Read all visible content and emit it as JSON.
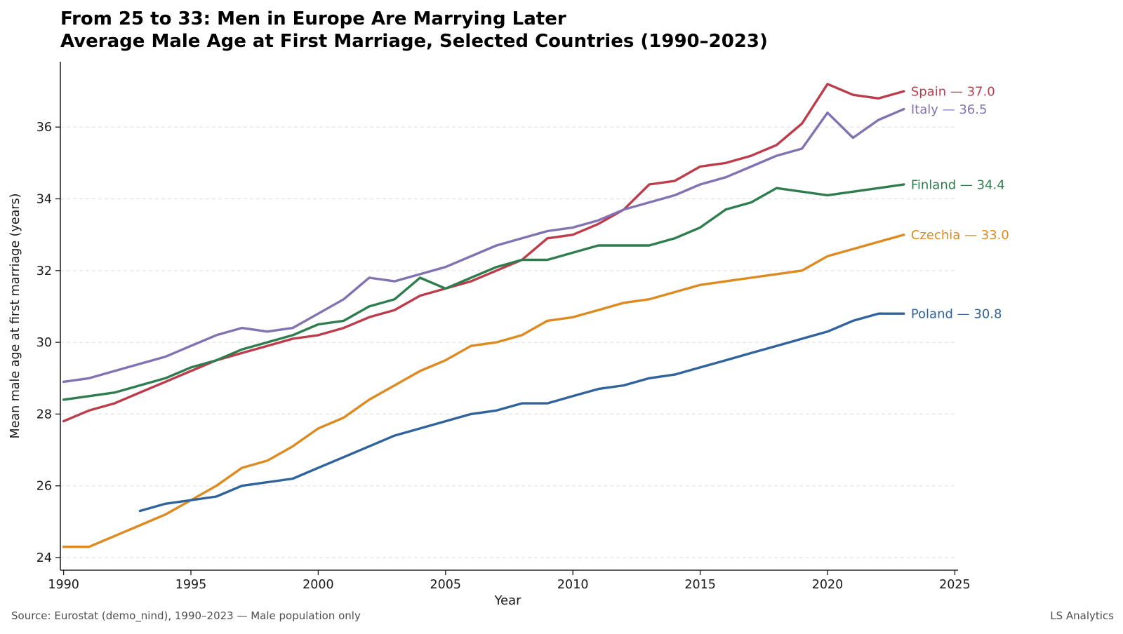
{
  "title": "From 25 to 33: Men in Europe Are Marrying Later",
  "subtitle": "Average Male Age at First Marriage, Selected Countries (1990–2023)",
  "footer": {
    "source": "Source: Eurostat (demo_nind), 1990–2023 — Male population only",
    "brand": "LS Analytics"
  },
  "chart_data": {
    "type": "line",
    "title": "From 25 to 33: Men in Europe Are Marrying Later",
    "subtitle": "Average Male Age at First Marriage, Selected Countries (1990–2023)",
    "xlabel": "Year",
    "ylabel": "Mean male age at first marriage (years)",
    "xlim": [
      1989.9,
      2025.1
    ],
    "ylim": [
      23.6,
      37.8
    ],
    "x_ticks": [
      1990,
      1995,
      2000,
      2005,
      2010,
      2015,
      2020,
      2025
    ],
    "y_ticks": [
      24,
      26,
      28,
      30,
      32,
      34,
      36
    ],
    "grid": "horizontal-dashed",
    "legend_position": "end-of-line-labels",
    "years_start": 1990,
    "years_end": 2023,
    "series": [
      {
        "name": "Spain",
        "label": "Spain — 37.0",
        "color": "#bc3c4b",
        "start_year": 1990,
        "values": [
          27.8,
          28.1,
          28.3,
          28.6,
          28.9,
          29.2,
          29.5,
          29.7,
          29.9,
          30.1,
          30.2,
          30.4,
          30.7,
          30.9,
          31.3,
          31.5,
          31.7,
          32.0,
          32.3,
          32.9,
          33.0,
          33.3,
          33.7,
          34.4,
          34.5,
          34.9,
          35.0,
          35.2,
          35.5,
          36.1,
          37.2,
          36.9,
          36.8,
          37.0
        ]
      },
      {
        "name": "Italy",
        "label": "Italy — 36.5",
        "color": "#8172b2",
        "start_year": 1990,
        "values": [
          28.9,
          29.0,
          29.2,
          29.4,
          29.6,
          29.9,
          30.2,
          30.4,
          30.3,
          30.4,
          30.8,
          31.2,
          31.8,
          31.7,
          31.9,
          32.1,
          32.4,
          32.7,
          32.9,
          33.1,
          33.2,
          33.4,
          33.7,
          33.9,
          34.1,
          34.4,
          34.6,
          34.9,
          35.2,
          35.4,
          36.4,
          35.7,
          36.2,
          36.5
        ]
      },
      {
        "name": "Finland",
        "label": "Finland — 34.4",
        "color": "#2f7d4f",
        "start_year": 1990,
        "values": [
          28.4,
          28.5,
          28.6,
          28.8,
          29.0,
          29.3,
          29.5,
          29.8,
          30.0,
          30.2,
          30.5,
          30.6,
          31.0,
          31.2,
          31.8,
          31.5,
          31.8,
          32.1,
          32.3,
          32.3,
          32.5,
          32.7,
          32.7,
          32.7,
          32.9,
          33.2,
          33.7,
          33.9,
          34.3,
          34.2,
          34.1,
          34.2,
          34.3,
          34.4
        ]
      },
      {
        "name": "Czechia",
        "label": "Czechia — 33.0",
        "color": "#dd8a20",
        "start_year": 1990,
        "values": [
          24.3,
          24.3,
          24.6,
          24.9,
          25.2,
          25.6,
          26.0,
          26.5,
          26.7,
          27.1,
          27.6,
          27.9,
          28.4,
          28.8,
          29.2,
          29.5,
          29.9,
          30.0,
          30.2,
          30.6,
          30.7,
          30.9,
          31.1,
          31.2,
          31.4,
          31.6,
          31.7,
          31.8,
          31.9,
          32.0,
          32.4,
          32.6,
          32.8,
          33.0
        ]
      },
      {
        "name": "Poland",
        "label": "Poland — 30.8",
        "color": "#30639c",
        "start_year": 1993,
        "values": [
          25.3,
          25.5,
          25.6,
          25.7,
          26.0,
          26.1,
          26.2,
          26.5,
          26.8,
          27.1,
          27.4,
          27.6,
          27.8,
          28.0,
          28.1,
          28.3,
          28.3,
          28.5,
          28.7,
          28.8,
          29.0,
          29.1,
          29.3,
          29.5,
          29.7,
          29.9,
          30.1,
          30.3,
          30.6,
          30.8,
          30.8
        ]
      }
    ]
  }
}
